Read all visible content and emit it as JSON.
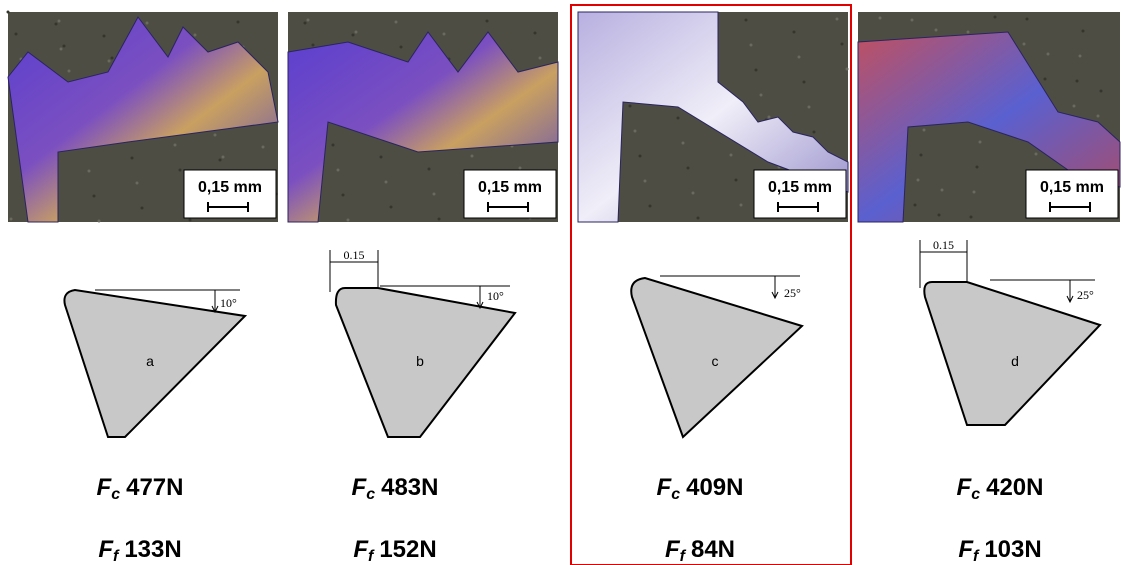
{
  "panels": [
    {
      "scale_label": "0,15 mm",
      "label": "a",
      "angle": "10°",
      "fc_symbol": "F",
      "fc_sub": "c",
      "fc_value": "477N",
      "ff_symbol": "F",
      "ff_sub": "f",
      "ff_value": "133N"
    },
    {
      "scale_label": "0,15 mm",
      "label": "b",
      "angle": "10°",
      "chamfer": "0.15",
      "fc_symbol": "F",
      "fc_sub": "c",
      "fc_value": "483N",
      "ff_symbol": "F",
      "ff_sub": "f",
      "ff_value": "152N"
    },
    {
      "scale_label": "0,15 mm",
      "label": "c",
      "angle": "25°",
      "fc_symbol": "F",
      "fc_sub": "c",
      "fc_value": "409N",
      "ff_symbol": "F",
      "ff_sub": "f",
      "ff_value": "84N"
    },
    {
      "scale_label": "0,15 mm",
      "label": "d",
      "angle": "25°",
      "chamfer": "0.15",
      "fc_symbol": "F",
      "fc_sub": "c",
      "fc_value": "420N",
      "ff_symbol": "F",
      "ff_sub": "f",
      "ff_value": "103N"
    }
  ]
}
